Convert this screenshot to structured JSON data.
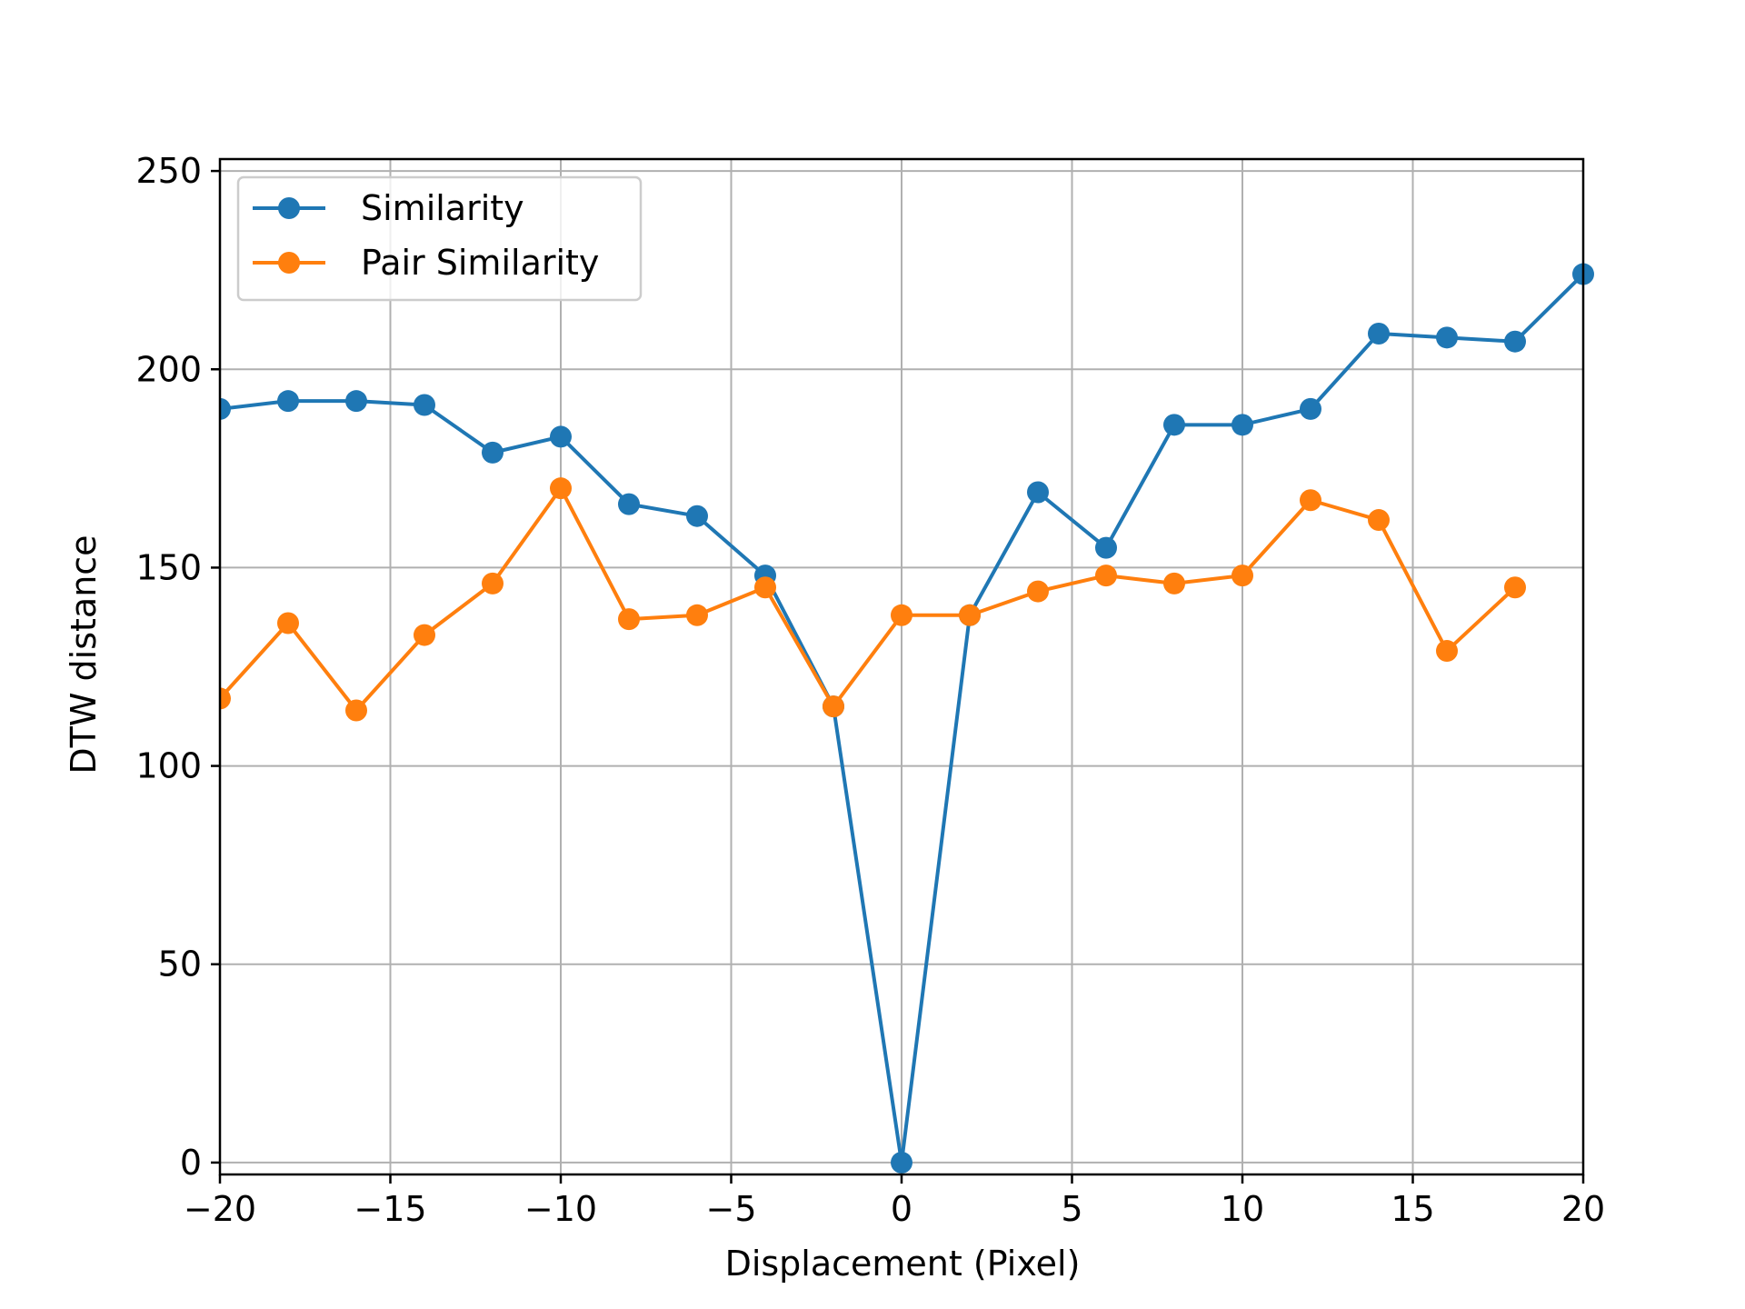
{
  "chart_data": {
    "type": "line",
    "xlabel": "Displacement (Pixel)",
    "ylabel": "DTW distance",
    "xlim": [
      -20,
      20
    ],
    "ylim": [
      -3,
      253
    ],
    "xticks": [
      -20,
      -15,
      -10,
      -5,
      0,
      5,
      10,
      15,
      20
    ],
    "xtick_labels": [
      "−20",
      "−15",
      "−10",
      "−5",
      "0",
      "5",
      "10",
      "15",
      "20"
    ],
    "yticks": [
      0,
      50,
      100,
      150,
      200,
      250
    ],
    "ytick_labels": [
      "0",
      "50",
      "100",
      "150",
      "200",
      "250"
    ],
    "grid": true,
    "legend_position": "upper-left",
    "series": [
      {
        "name": "Similarity",
        "color": "#1f77b4",
        "marker": "circle",
        "x": [
          -20,
          -18,
          -16,
          -14,
          -12,
          -10,
          -8,
          -6,
          -4,
          -2,
          0,
          2,
          4,
          6,
          8,
          10,
          12,
          14,
          16,
          18,
          20
        ],
        "y": [
          190,
          192,
          192,
          191,
          179,
          183,
          166,
          163,
          148,
          115,
          0,
          138,
          169,
          155,
          186,
          186,
          190,
          209,
          208,
          207,
          224
        ]
      },
      {
        "name": "Pair Similarity",
        "color": "#ff7f0e",
        "marker": "circle",
        "x": [
          -20,
          -18,
          -16,
          -14,
          -12,
          -10,
          -8,
          -6,
          -4,
          -2,
          0,
          2,
          4,
          6,
          8,
          10,
          12,
          14,
          16,
          18
        ],
        "y": [
          117,
          136,
          114,
          133,
          146,
          170,
          137,
          138,
          145,
          115,
          138,
          138,
          144,
          148,
          146,
          148,
          167,
          162,
          129,
          145
        ]
      }
    ]
  }
}
